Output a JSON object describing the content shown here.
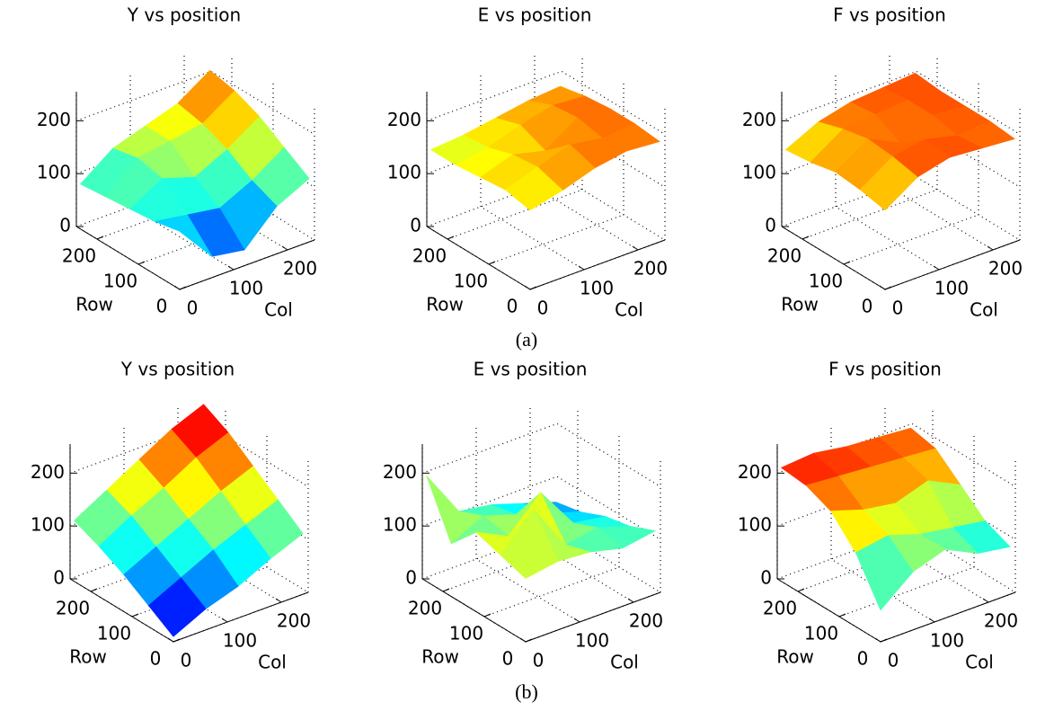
{
  "captions": [
    "(a)",
    "(b)"
  ],
  "chart_data": [
    {
      "type": "surface",
      "title": "Y vs position",
      "xlabel": "Col",
      "ylabel": "Row",
      "colormap": "jet",
      "grid": true,
      "x": [
        0,
        60,
        120,
        180,
        240
      ],
      "y": [
        0,
        60,
        120,
        180,
        240
      ],
      "z": [
        [
          110,
          40,
          30,
          90,
          120
        ],
        [
          100,
          90,
          80,
          110,
          150
        ],
        [
          95,
          130,
          110,
          140,
          180
        ],
        [
          90,
          140,
          150,
          160,
          200
        ],
        [
          85,
          130,
          150,
          170,
          210
        ]
      ],
      "xlim": [
        0,
        250
      ],
      "ylim": [
        0,
        250
      ],
      "zlim": [
        0,
        255
      ],
      "xticks": [
        0,
        100,
        200
      ],
      "yticks": [
        0,
        100,
        200
      ],
      "zticks": [
        0,
        100,
        200
      ]
    },
    {
      "type": "surface",
      "title": "E vs position",
      "xlabel": "Col",
      "ylabel": "Row",
      "colormap": "jet",
      "grid": true,
      "x": [
        0,
        60,
        120,
        180,
        240
      ],
      "y": [
        0,
        60,
        120,
        180,
        240
      ],
      "z": [
        [
          150,
          165,
          185,
          195,
          190
        ],
        [
          160,
          180,
          200,
          190,
          195
        ],
        [
          155,
          175,
          160,
          200,
          195
        ],
        [
          150,
          160,
          180,
          195,
          190
        ],
        [
          150,
          155,
          165,
          175,
          180
        ]
      ],
      "xlim": [
        0,
        250
      ],
      "ylim": [
        0,
        250
      ],
      "zlim": [
        0,
        255
      ],
      "xticks": [
        0,
        100,
        200
      ],
      "yticks": [
        0,
        100,
        200
      ],
      "zticks": [
        0,
        100,
        200
      ]
    },
    {
      "type": "surface",
      "title": "F vs position",
      "xlabel": "Col",
      "ylabel": "Row",
      "colormap": "jet",
      "grid": true,
      "x": [
        0,
        60,
        120,
        180,
        240
      ],
      "y": [
        0,
        60,
        120,
        180,
        240
      ],
      "z": [
        [
          150,
          190,
          205,
          200,
          195
        ],
        [
          160,
          200,
          210,
          195,
          200
        ],
        [
          165,
          205,
          175,
          205,
          200
        ],
        [
          155,
          195,
          200,
          205,
          200
        ],
        [
          150,
          180,
          195,
          200,
          205
        ]
      ],
      "xlim": [
        0,
        250
      ],
      "ylim": [
        0,
        250
      ],
      "zlim": [
        0,
        255
      ],
      "xticks": [
        0,
        100,
        200
      ],
      "yticks": [
        0,
        100,
        200
      ],
      "zticks": [
        0,
        100,
        200
      ]
    },
    {
      "type": "surface",
      "title": "Y vs position",
      "xlabel": "Col",
      "ylabel": "Row",
      "colormap": "jet",
      "grid": true,
      "x": [
        0,
        60,
        120,
        180,
        240
      ],
      "y": [
        0,
        60,
        120,
        180,
        240
      ],
      "z": [
        [
          10,
          40,
          60,
          90,
          115
        ],
        [
          40,
          70,
          100,
          125,
          150
        ],
        [
          70,
          100,
          130,
          160,
          185
        ],
        [
          95,
          130,
          160,
          195,
          220
        ],
        [
          115,
          150,
          185,
          220,
          245
        ]
      ],
      "xlim": [
        0,
        250
      ],
      "ylim": [
        0,
        250
      ],
      "zlim": [
        0,
        255
      ],
      "xticks": [
        0,
        100,
        200
      ],
      "yticks": [
        0,
        100,
        200
      ],
      "zticks": [
        0,
        100,
        200
      ]
    },
    {
      "type": "surface",
      "title": "E vs position",
      "xlabel": "Col",
      "ylabel": "Row",
      "colormap": "jet",
      "grid": true,
      "x": [
        0,
        60,
        120,
        180,
        240
      ],
      "y": [
        0,
        60,
        120,
        180,
        240
      ],
      "z": [
        [
          120,
          130,
          125,
          110,
          120
        ],
        [
          135,
          200,
          110,
          120,
          100
        ],
        [
          150,
          120,
          180,
          100,
          90
        ],
        [
          100,
          130,
          110,
          90,
          70
        ],
        [
          200,
          110,
          100,
          80,
          60
        ]
      ],
      "xlim": [
        0,
        250
      ],
      "ylim": [
        0,
        250
      ],
      "zlim": [
        0,
        255
      ],
      "xticks": [
        0,
        100,
        200
      ],
      "yticks": [
        0,
        100,
        200
      ],
      "zticks": [
        0,
        100,
        200
      ]
    },
    {
      "type": "surface",
      "title": "F vs position",
      "xlabel": "Col",
      "ylabel": "Row",
      "colormap": "jet",
      "grid": true,
      "x": [
        0,
        60,
        120,
        180,
        240
      ],
      "y": [
        0,
        60,
        120,
        180,
        240
      ],
      "z": [
        [
          60,
          110,
          130,
          100,
          90
        ],
        [
          140,
          150,
          130,
          120,
          110
        ],
        [
          190,
          170,
          160,
          180,
          150
        ],
        [
          210,
          205,
          200,
          195,
          190
        ],
        [
          215,
          220,
          210,
          205,
          200
        ]
      ],
      "xlim": [
        0,
        250
      ],
      "ylim": [
        0,
        250
      ],
      "zlim": [
        0,
        255
      ],
      "xticks": [
        0,
        100,
        200
      ],
      "yticks": [
        0,
        100,
        200
      ],
      "zticks": [
        0,
        100,
        200
      ]
    }
  ]
}
